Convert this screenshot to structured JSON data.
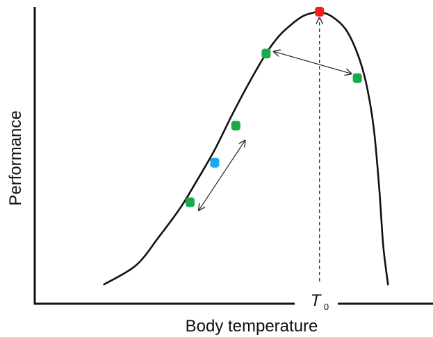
{
  "chart_data": {
    "type": "line",
    "xlabel": "Body temperature",
    "ylabel": "Performance",
    "xlim": [
      0,
      100
    ],
    "ylim": [
      0,
      100
    ],
    "grid": false,
    "legend": "none",
    "optimum_label": {
      "main": "T",
      "sub": "0"
    },
    "optimum_x": 71.5,
    "curve": {
      "x": [
        17.4,
        25.4,
        31.0,
        36.6,
        40.9,
        45.2,
        49.5,
        53.8,
        58.1,
        61.4,
        64.8,
        67.5,
        70.3,
        71.5,
        74.6,
        78.1,
        81.0,
        83.2,
        85.1,
        86.5,
        87.5,
        88.7
      ],
      "y": [
        6.5,
        12.9,
        22.2,
        32.4,
        41.9,
        51.9,
        63.5,
        74.4,
        84.3,
        90.3,
        94.5,
        97.0,
        98.2,
        98.4,
        96.8,
        92.4,
        84.4,
        74.4,
        59.4,
        38.9,
        19.6,
        6.5
      ]
    },
    "markers": [
      {
        "x": 71.5,
        "y": 98.4,
        "color": "#ff1a1a"
      },
      {
        "x": 58.1,
        "y": 84.3,
        "color": "#1aaa4a"
      },
      {
        "x": 81.0,
        "y": 76.0,
        "color": "#1aaa4a"
      },
      {
        "x": 50.5,
        "y": 60.0,
        "color": "#1aaa4a"
      },
      {
        "x": 45.2,
        "y": 47.5,
        "color": "#1aa8ee"
      },
      {
        "x": 39.0,
        "y": 34.2,
        "color": "#1aaa4a"
      }
    ],
    "double_arrows": [
      {
        "from": [
          60.0,
          85.0
        ],
        "to": [
          79.5,
          77.5
        ]
      },
      {
        "from": [
          52.8,
          55.0
        ],
        "to": [
          41.2,
          31.5
        ]
      }
    ],
    "colors": {
      "curve": "#111111",
      "axis": "#111111",
      "arrow": "#333333"
    }
  }
}
